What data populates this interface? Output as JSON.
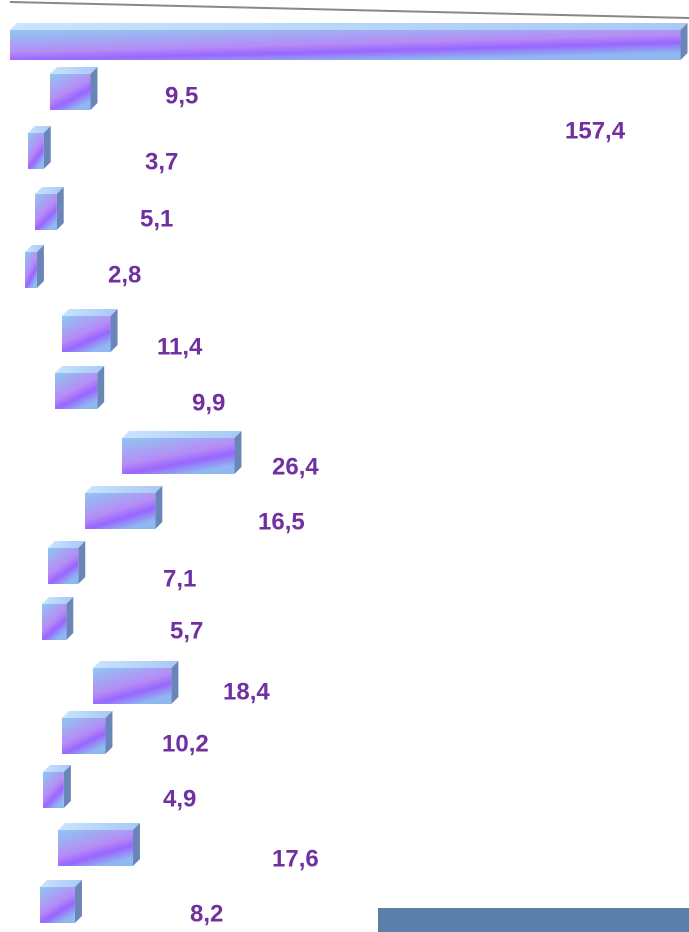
{
  "chart_data": {
    "type": "bar",
    "orientation": "horizontal",
    "values": [
      157.4,
      9.5,
      3.7,
      5.1,
      2.8,
      11.4,
      9.9,
      26.4,
      16.5,
      7.1,
      5.7,
      18.4,
      10.2,
      4.9,
      17.6,
      8.2
    ],
    "value_labels": [
      "157,4",
      "9,5",
      "3,7",
      "5,1",
      "2,8",
      "11,4",
      "9,9",
      "26,4",
      "16,5",
      "7,1",
      "5,7",
      "18,4",
      "10,2",
      "4,9",
      "17,6",
      "8,2"
    ],
    "color": "#9966ff"
  }
}
